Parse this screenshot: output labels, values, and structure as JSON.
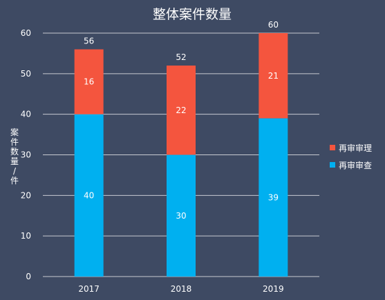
{
  "chart_data": {
    "type": "bar",
    "stacked": true,
    "title": "整体案件数量",
    "ylabel": "案件数量/件",
    "xlabel": "",
    "categories": [
      "2017",
      "2018",
      "2019"
    ],
    "series": [
      {
        "name": "再审审查",
        "values": [
          40,
          30,
          39
        ],
        "color": "#00b0f0"
      },
      {
        "name": "再审审理",
        "values": [
          16,
          22,
          21
        ],
        "color": "#f4553e"
      }
    ],
    "totals": [
      56,
      52,
      60
    ],
    "ylim": [
      0,
      60
    ],
    "yticks": [
      0,
      10,
      20,
      30,
      40,
      50,
      60
    ],
    "grid": true,
    "legend_position": "right"
  },
  "colors": {
    "background": "#3e4a63",
    "gridline": "#c8cbd2",
    "text": "#ffffff"
  }
}
